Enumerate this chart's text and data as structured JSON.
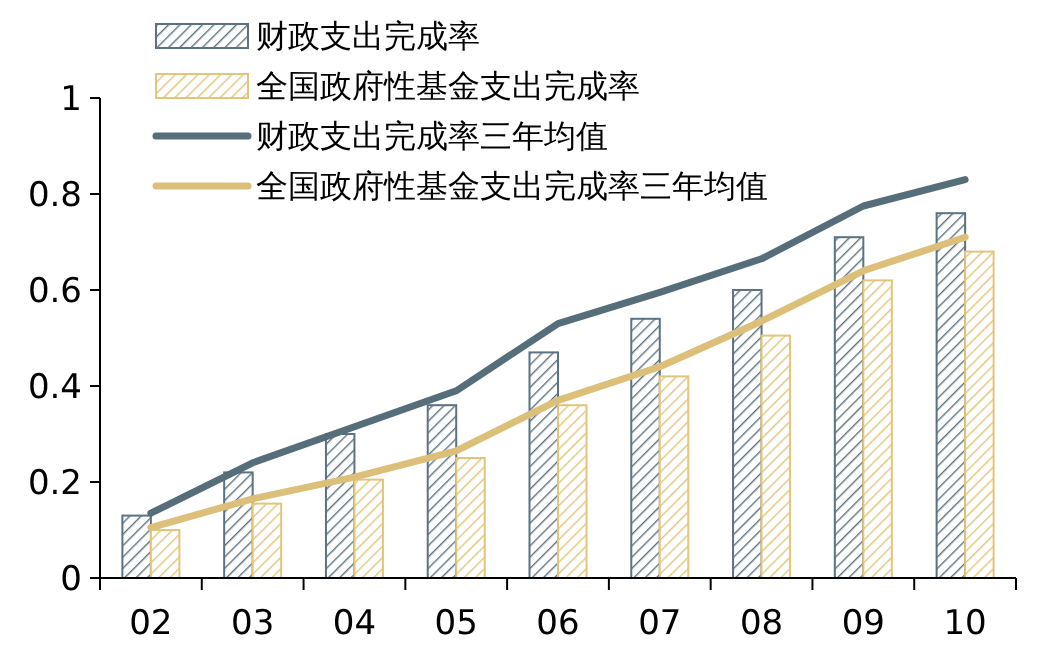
{
  "chart_data": {
    "type": "bar",
    "categories": [
      "02",
      "03",
      "04",
      "05",
      "06",
      "07",
      "08",
      "09",
      "10"
    ],
    "series": [
      {
        "name": "财政支出完成率",
        "color": "#5b7282",
        "values": [
          0.13,
          0.22,
          0.3,
          0.36,
          0.47,
          0.54,
          0.6,
          0.71,
          0.76
        ]
      },
      {
        "name": "全国政府性基金支出完成率",
        "color": "#e3c57a",
        "values": [
          0.1,
          0.155,
          0.205,
          0.25,
          0.36,
          0.42,
          0.505,
          0.62,
          0.68
        ]
      },
      {
        "name": "财政支出完成率三年均值",
        "type": "line",
        "color": "#566d7a",
        "values": [
          0.135,
          0.24,
          0.315,
          0.39,
          0.53,
          0.595,
          0.665,
          0.775,
          0.83
        ]
      },
      {
        "name": "全国政府性基金支出完成率三年均值",
        "type": "line",
        "color": "#dcc07a",
        "values": [
          0.105,
          0.165,
          0.21,
          0.265,
          0.37,
          0.44,
          0.535,
          0.64,
          0.71
        ]
      }
    ],
    "ylim": [
      0,
      1
    ],
    "yticks": [
      0,
      {
        "value": 0.2,
        "label": "0.2"
      },
      {
        "value": 0.4,
        "label": "0.4"
      },
      {
        "value": 0.6,
        "label": "0.6"
      },
      {
        "value": 0.8,
        "label": "0.8"
      },
      1
    ],
    "legend": "top",
    "grid": false
  }
}
